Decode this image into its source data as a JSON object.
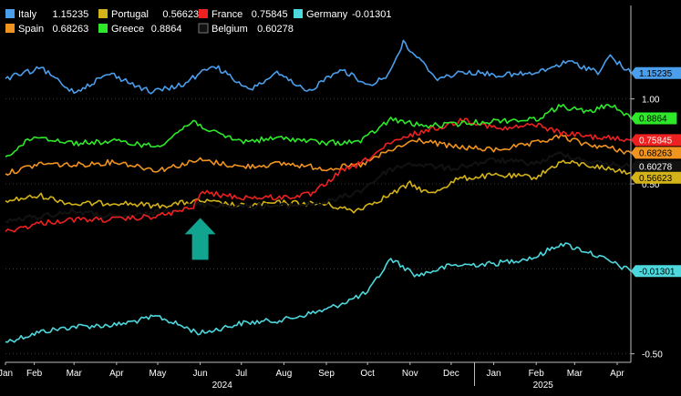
{
  "chart_data": {
    "type": "line",
    "title": "",
    "xlabel": "",
    "ylabel": "",
    "ylim": [
      -0.55,
      1.55
    ],
    "x_range": [
      "2024-01-25",
      "2025-04-25"
    ],
    "y_ticks": [
      "1.00",
      "0.50",
      "-0.50"
    ],
    "y_tick_values": [
      1.0,
      0.5,
      -0.5
    ],
    "gridlines": [
      1.0,
      0.5,
      0.0,
      -0.5
    ],
    "month_labels": [
      {
        "label": "Jan",
        "date": "2024-01-25"
      },
      {
        "label": "Feb",
        "date": "2024-02-15"
      },
      {
        "label": "Mar",
        "date": "2024-03-15"
      },
      {
        "label": "Apr",
        "date": "2024-04-15"
      },
      {
        "label": "May",
        "date": "2024-05-15"
      },
      {
        "label": "Jun",
        "date": "2024-06-15"
      },
      {
        "label": "Jul",
        "date": "2024-07-15"
      },
      {
        "label": "Aug",
        "date": "2024-08-15"
      },
      {
        "label": "Sep",
        "date": "2024-09-15"
      },
      {
        "label": "Oct",
        "date": "2024-10-15"
      },
      {
        "label": "Nov",
        "date": "2024-11-15"
      },
      {
        "label": "Dec",
        "date": "2024-12-15"
      },
      {
        "label": "Jan",
        "date": "2025-01-15"
      },
      {
        "label": "Feb",
        "date": "2025-02-15"
      },
      {
        "label": "Mar",
        "date": "2025-03-15"
      },
      {
        "label": "Apr",
        "date": "2025-04-15"
      }
    ],
    "year_labels": [
      {
        "label": "2024",
        "date": "2024-07-01"
      },
      {
        "label": "2025",
        "date": "2025-02-20"
      }
    ],
    "year_divider": "2025-01-01",
    "legend_placement": "top-left",
    "annotation": {
      "type": "up-arrow",
      "color": "#11a58f",
      "date": "2024-06-15",
      "y": 0.3
    },
    "series": [
      {
        "name": "Italy",
        "last": "1.15235",
        "color": "#4a9eec",
        "points": [
          [
            "2024-01-25",
            1.12
          ],
          [
            "2024-02-20",
            1.18
          ],
          [
            "2024-03-15",
            1.04
          ],
          [
            "2024-04-10",
            1.15
          ],
          [
            "2024-05-10",
            1.04
          ],
          [
            "2024-06-01",
            1.08
          ],
          [
            "2024-06-25",
            1.2
          ],
          [
            "2024-07-20",
            1.05
          ],
          [
            "2024-08-10",
            1.15
          ],
          [
            "2024-09-01",
            1.04
          ],
          [
            "2024-09-25",
            1.18
          ],
          [
            "2024-10-15",
            1.08
          ],
          [
            "2024-10-30",
            1.14
          ],
          [
            "2024-11-10",
            1.33
          ],
          [
            "2024-12-05",
            1.12
          ],
          [
            "2024-12-25",
            1.16
          ],
          [
            "2025-01-20",
            1.14
          ],
          [
            "2025-02-15",
            1.15
          ],
          [
            "2025-03-10",
            1.22
          ],
          [
            "2025-04-01",
            1.16
          ],
          [
            "2025-04-10",
            1.25
          ],
          [
            "2025-04-25",
            1.152
          ]
        ]
      },
      {
        "name": "Spain",
        "last": "0.68263",
        "color": "#f0931f",
        "points": [
          [
            "2024-01-25",
            0.56
          ],
          [
            "2024-02-20",
            0.62
          ],
          [
            "2024-03-15",
            0.61
          ],
          [
            "2024-04-15",
            0.63
          ],
          [
            "2024-05-15",
            0.58
          ],
          [
            "2024-06-15",
            0.64
          ],
          [
            "2024-07-15",
            0.6
          ],
          [
            "2024-08-15",
            0.62
          ],
          [
            "2024-09-15",
            0.59
          ],
          [
            "2024-10-10",
            0.61
          ],
          [
            "2024-10-30",
            0.69
          ],
          [
            "2024-11-20",
            0.76
          ],
          [
            "2024-12-15",
            0.72
          ],
          [
            "2025-01-15",
            0.7
          ],
          [
            "2025-02-10",
            0.73
          ],
          [
            "2025-03-05",
            0.78
          ],
          [
            "2025-03-20",
            0.74
          ],
          [
            "2025-04-10",
            0.71
          ],
          [
            "2025-04-25",
            0.683
          ]
        ]
      },
      {
        "name": "Portugal",
        "last": "0.56623",
        "color": "#d4b318",
        "points": [
          [
            "2024-01-25",
            0.4
          ],
          [
            "2024-02-20",
            0.43
          ],
          [
            "2024-03-15",
            0.38
          ],
          [
            "2024-04-15",
            0.39
          ],
          [
            "2024-05-15",
            0.37
          ],
          [
            "2024-06-15",
            0.4
          ],
          [
            "2024-07-15",
            0.37
          ],
          [
            "2024-08-15",
            0.39
          ],
          [
            "2024-09-15",
            0.38
          ],
          [
            "2024-10-05",
            0.34
          ],
          [
            "2024-10-30",
            0.43
          ],
          [
            "2024-11-15",
            0.5
          ],
          [
            "2024-11-30",
            0.44
          ],
          [
            "2024-12-20",
            0.53
          ],
          [
            "2025-01-15",
            0.55
          ],
          [
            "2025-02-15",
            0.54
          ],
          [
            "2025-03-05",
            0.63
          ],
          [
            "2025-03-25",
            0.61
          ],
          [
            "2025-04-25",
            0.566
          ]
        ]
      },
      {
        "name": "Greece",
        "last": "0.8864",
        "color": "#2ee82a",
        "points": [
          [
            "2024-01-25",
            0.66
          ],
          [
            "2024-02-15",
            0.78
          ],
          [
            "2024-03-15",
            0.74
          ],
          [
            "2024-04-15",
            0.75
          ],
          [
            "2024-05-15",
            0.72
          ],
          [
            "2024-06-10",
            0.87
          ],
          [
            "2024-06-25",
            0.8
          ],
          [
            "2024-07-15",
            0.75
          ],
          [
            "2024-08-15",
            0.77
          ],
          [
            "2024-09-15",
            0.74
          ],
          [
            "2024-10-10",
            0.75
          ],
          [
            "2024-11-01",
            0.88
          ],
          [
            "2024-11-25",
            0.84
          ],
          [
            "2024-12-15",
            0.85
          ],
          [
            "2025-01-15",
            0.87
          ],
          [
            "2025-02-15",
            0.88
          ],
          [
            "2025-03-05",
            0.96
          ],
          [
            "2025-03-25",
            0.92
          ],
          [
            "2025-04-10",
            0.97
          ],
          [
            "2025-04-25",
            0.886
          ]
        ]
      },
      {
        "name": "France",
        "last": "0.75845",
        "color": "#ee2020",
        "points": [
          [
            "2024-01-25",
            0.22
          ],
          [
            "2024-02-20",
            0.27
          ],
          [
            "2024-03-15",
            0.29
          ],
          [
            "2024-04-15",
            0.29
          ],
          [
            "2024-05-15",
            0.31
          ],
          [
            "2024-06-10",
            0.36
          ],
          [
            "2024-06-15",
            0.45
          ],
          [
            "2024-07-15",
            0.42
          ],
          [
            "2024-08-15",
            0.42
          ],
          [
            "2024-09-05",
            0.44
          ],
          [
            "2024-09-25",
            0.57
          ],
          [
            "2024-10-10",
            0.62
          ],
          [
            "2024-10-30",
            0.73
          ],
          [
            "2024-11-20",
            0.8
          ],
          [
            "2024-12-10",
            0.84
          ],
          [
            "2024-12-25",
            0.88
          ],
          [
            "2025-01-20",
            0.82
          ],
          [
            "2025-02-15",
            0.85
          ],
          [
            "2025-03-05",
            0.8
          ],
          [
            "2025-03-25",
            0.78
          ],
          [
            "2025-04-25",
            0.758
          ]
        ]
      },
      {
        "name": "Belgium",
        "last": "0.60278",
        "color": "#111111",
        "points": [
          [
            "2024-01-25",
            0.28
          ],
          [
            "2024-02-20",
            0.31
          ],
          [
            "2024-03-15",
            0.34
          ],
          [
            "2024-04-15",
            0.3
          ],
          [
            "2024-05-15",
            0.33
          ],
          [
            "2024-06-15",
            0.38
          ],
          [
            "2024-07-15",
            0.37
          ],
          [
            "2024-08-15",
            0.37
          ],
          [
            "2024-09-15",
            0.39
          ],
          [
            "2024-10-10",
            0.46
          ],
          [
            "2024-10-30",
            0.58
          ],
          [
            "2024-11-15",
            0.62
          ],
          [
            "2024-12-15",
            0.59
          ],
          [
            "2025-01-15",
            0.64
          ],
          [
            "2025-02-15",
            0.62
          ],
          [
            "2025-03-05",
            0.68
          ],
          [
            "2025-03-25",
            0.63
          ],
          [
            "2025-04-25",
            0.603
          ]
        ]
      },
      {
        "name": "Germany",
        "last": "-0.01301",
        "color": "#4cd8dc",
        "points": [
          [
            "2024-01-25",
            -0.43
          ],
          [
            "2024-02-20",
            -0.37
          ],
          [
            "2024-03-15",
            -0.34
          ],
          [
            "2024-04-15",
            -0.33
          ],
          [
            "2024-05-15",
            -0.28
          ],
          [
            "2024-06-15",
            -0.38
          ],
          [
            "2024-07-15",
            -0.32
          ],
          [
            "2024-08-15",
            -0.3
          ],
          [
            "2024-09-15",
            -0.24
          ],
          [
            "2024-10-15",
            -0.14
          ],
          [
            "2024-11-01",
            0.06
          ],
          [
            "2024-11-20",
            -0.04
          ],
          [
            "2024-12-15",
            0.02
          ],
          [
            "2025-01-15",
            0.03
          ],
          [
            "2025-02-15",
            0.07
          ],
          [
            "2025-03-05",
            0.15
          ],
          [
            "2025-03-25",
            0.1
          ],
          [
            "2025-04-25",
            -0.013
          ]
        ]
      }
    ]
  }
}
